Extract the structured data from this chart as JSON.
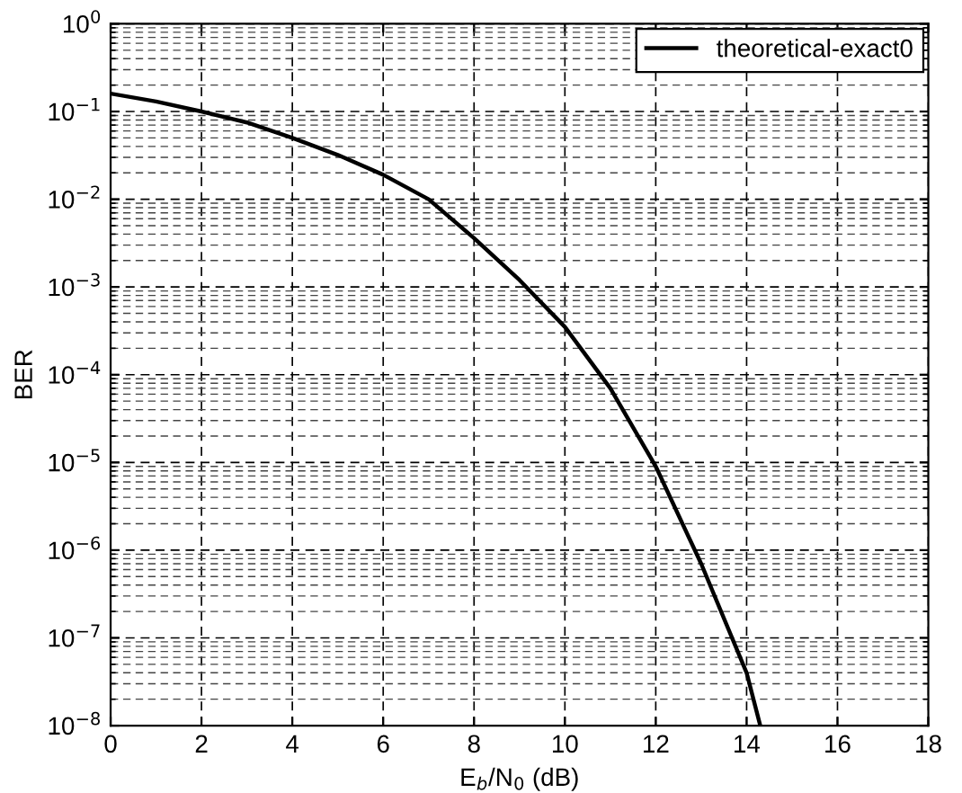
{
  "chart_data": {
    "type": "line",
    "xlabel": "E$_{b}$/N$_{0}$ (dB)",
    "ylabel": "BER",
    "log": "y",
    "xlim": [
      0,
      18
    ],
    "xticks": [
      0,
      2,
      4,
      6,
      8,
      10,
      12,
      14,
      16,
      18
    ],
    "ylim": [
      1e-08,
      1
    ],
    "yticks": [
      {
        "value": 1e-08,
        "label": "10$^{−8}$"
      },
      {
        "value": 1e-07,
        "label": "10$^{−7}$"
      },
      {
        "value": 1e-06,
        "label": "10$^{−6}$"
      },
      {
        "value": 1e-05,
        "label": "10$^{−5}$"
      },
      {
        "value": 0.0001,
        "label": "10$^{−4}$"
      },
      {
        "value": 0.001,
        "label": "10$^{−3}$"
      },
      {
        "value": 0.01,
        "label": "10$^{−2}$"
      },
      {
        "value": 0.1,
        "label": "10$^{−1}$"
      },
      {
        "value": 1,
        "label": "10$^{0}$"
      }
    ],
    "grid": true,
    "legend": "top right",
    "line_style": "solid",
    "marker": "none",
    "series": [
      {
        "name": "theoretical-exact0",
        "color": "#000000",
        "x": [
          0,
          1,
          2,
          3,
          4,
          5,
          6,
          7,
          8,
          9,
          10,
          11,
          12,
          13,
          14,
          14.3
        ],
        "values": [
          0.16,
          0.13,
          0.1,
          0.075,
          0.05,
          0.032,
          0.019,
          0.01,
          0.0036,
          0.0012,
          0.00035,
          7e-05,
          9e-06,
          7e-07,
          4e-08,
          1e-08
        ]
      }
    ]
  }
}
